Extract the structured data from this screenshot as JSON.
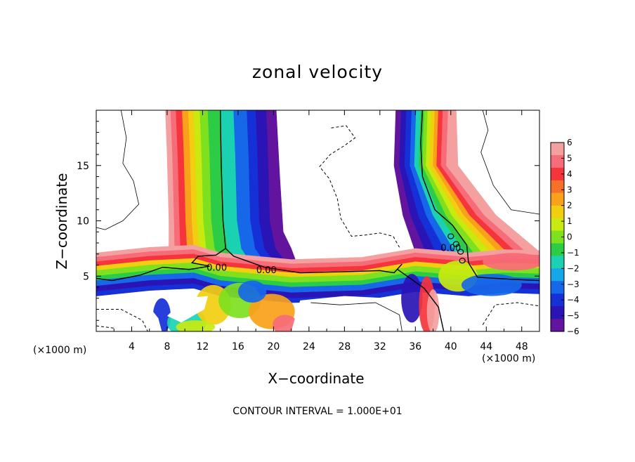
{
  "chart_data": {
    "type": "heatmap",
    "title": "zonal velocity",
    "xlabel": "X−coordinate",
    "ylabel": "Z−coordinate",
    "x_unit": "(×1000 m)",
    "footer": "CONTOUR INTERVAL = 1.000E+01",
    "xlim": [
      0,
      50
    ],
    "ylim": [
      0,
      20
    ],
    "x_ticks": [
      4,
      8,
      12,
      16,
      20,
      24,
      28,
      32,
      36,
      40,
      44,
      48
    ],
    "x_tick_labels": [
      "4",
      "8",
      "12",
      "16",
      "20",
      "24",
      "28",
      "32",
      "36",
      "40",
      "44",
      "48"
    ],
    "y_ticks": [
      5,
      10,
      15
    ],
    "y_tick_labels": [
      "5",
      "10",
      "15"
    ],
    "colorbar": {
      "min": -6,
      "max": 6,
      "tick_labels": [
        "6",
        "5",
        "4",
        "3",
        "2",
        "1",
        "0",
        "−1",
        "−2",
        "−3",
        "−4",
        "−5",
        "−6"
      ],
      "colors": [
        "#f4a0a0",
        "#f66c78",
        "#f5343c",
        "#f6702a",
        "#f9a11a",
        "#f1cf10",
        "#c8ea10",
        "#7ee01e",
        "#2ccc46",
        "#1ad2b2",
        "#16a6ea",
        "#1768e8",
        "#1630d8",
        "#2a14b6",
        "#62149e"
      ]
    },
    "contour_labels": [
      {
        "text": "0.00",
        "x": 13.6,
        "z": 5.8
      },
      {
        "text": "0.00",
        "x": 19.2,
        "z": 5.6
      },
      {
        "text": "0.00",
        "x": 40.0,
        "z": 7.6
      }
    ],
    "data_regions": [
      {
        "name": "left-rising-jet",
        "value_profile": "positive-to-negative",
        "x_range": [
          8,
          21
        ],
        "z_range": [
          0,
          20
        ]
      },
      {
        "name": "right-rising-jet",
        "value_profile": "negative-to-positive",
        "x_range": [
          33,
          41
        ],
        "z_range": [
          0,
          20
        ]
      },
      {
        "name": "low-level-outflow",
        "z_range": [
          3,
          7
        ]
      }
    ]
  }
}
